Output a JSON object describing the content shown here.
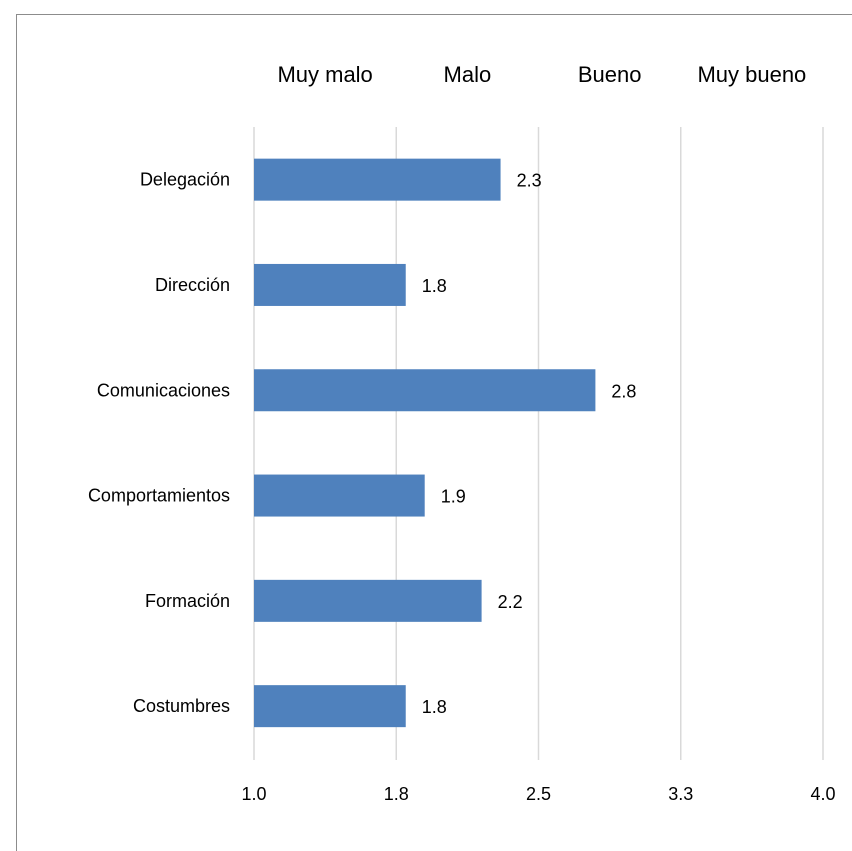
{
  "chart_data": {
    "type": "bar",
    "orientation": "horizontal",
    "categories": [
      "Delegación",
      "Dirección",
      "Comunicaciones",
      "Comportamientos",
      "Formación",
      "Costumbres"
    ],
    "values": [
      2.3,
      1.8,
      2.8,
      1.9,
      2.2,
      1.8
    ],
    "value_labels": [
      "2.3",
      "1.8",
      "2.8",
      "1.9",
      "2.2",
      "1.8"
    ],
    "xlim": [
      1.0,
      4.0
    ],
    "x_ticks": [
      1.0,
      1.75,
      2.5,
      3.25,
      4.0
    ],
    "x_tick_labels": [
      "1.0",
      "1.8",
      "2.5",
      "3.3",
      "4.0"
    ],
    "top_labels": [
      "Muy malo",
      "Malo",
      "Bueno",
      "Muy bueno"
    ],
    "grid": "vertical",
    "legend": "none",
    "colors": {
      "bar": "#4f81bd",
      "grid": "#d9d9d9"
    }
  }
}
